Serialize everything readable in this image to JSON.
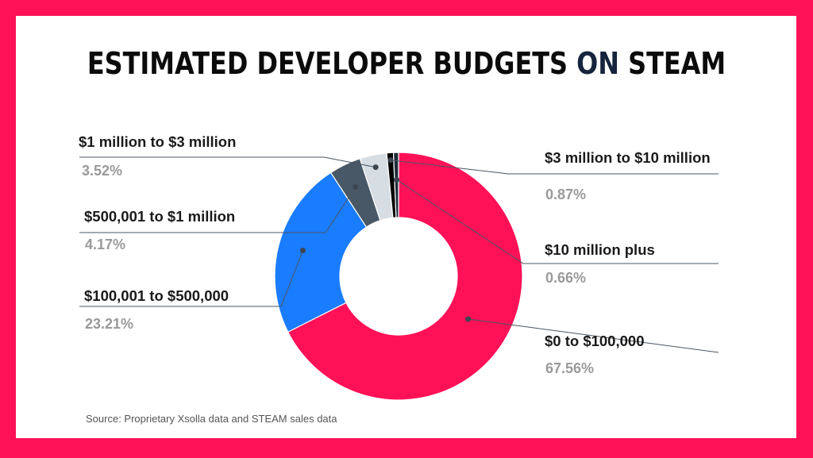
{
  "title": {
    "main": "ESTIMATED DEVELOPER BUDGETS",
    "accent": "ON",
    "tail": "STEAM"
  },
  "source": "Source: Proprietary Xsolla data and STEAM sales data",
  "colors": {
    "frame": "#ff1158",
    "slice_0_100k": "#ff1158",
    "slice_100k_500k": "#1a7cff",
    "slice_500k_1m": "#495866",
    "slice_1m_3m": "#d6dde3",
    "slice_3m_10m": "#000000",
    "slice_10m_plus": "#1f2d3a"
  },
  "chart_data": {
    "type": "pie",
    "donut": true,
    "title": "ESTIMATED DEVELOPER BUDGETS ON STEAM",
    "categories": [
      "$0 to $100,000",
      "$100,001 to $500,000",
      "$500,001 to $1 million",
      "$1 million to $3 million",
      "$3 million to $10 million",
      "$10 million plus"
    ],
    "values": [
      67.56,
      23.21,
      4.17,
      3.52,
      0.87,
      0.66
    ],
    "value_labels": [
      "67.56%",
      "23.21%",
      "4.17%",
      "3.52%",
      "0.87%",
      "0.66%"
    ]
  }
}
